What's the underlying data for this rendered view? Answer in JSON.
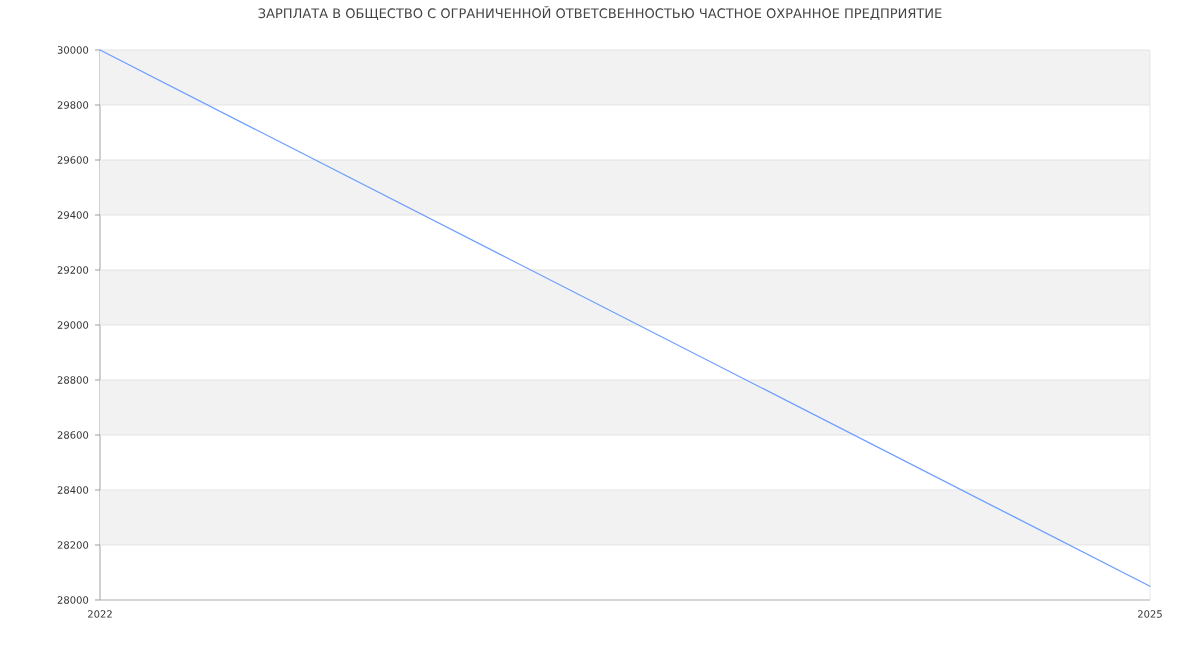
{
  "chart_data": {
    "type": "line",
    "title": "ЗАРПЛАТА В ОБЩЕСТВО С ОГРАНИЧЕННОЙ ОТВЕТСВЕННОСТЬЮ ЧАСТНОЕ ОХРАННОЕ ПРЕДПРИЯТИЕ",
    "x": [
      2022,
      2025
    ],
    "values": [
      30000,
      28050
    ],
    "color": "#6d9eff",
    "xlim": [
      2022,
      2025
    ],
    "xticks": [
      2022,
      2025
    ],
    "ylim": [
      28000,
      30000
    ],
    "yticks": [
      28000,
      28200,
      28400,
      28600,
      28800,
      29000,
      29200,
      29400,
      29600,
      29800,
      30000
    ],
    "grid": "y",
    "bands": [
      {
        "axis": "y",
        "from": 29800,
        "to": 30000,
        "color": "#f2f2f2"
      },
      {
        "axis": "y",
        "from": 29400,
        "to": 29600,
        "color": "#f2f2f2"
      },
      {
        "axis": "y",
        "from": 29000,
        "to": 29200,
        "color": "#f2f2f2"
      },
      {
        "axis": "y",
        "from": 28600,
        "to": 28800,
        "color": "#f2f2f2"
      },
      {
        "axis": "y",
        "from": 28200,
        "to": 28400,
        "color": "#f2f2f2"
      }
    ]
  }
}
